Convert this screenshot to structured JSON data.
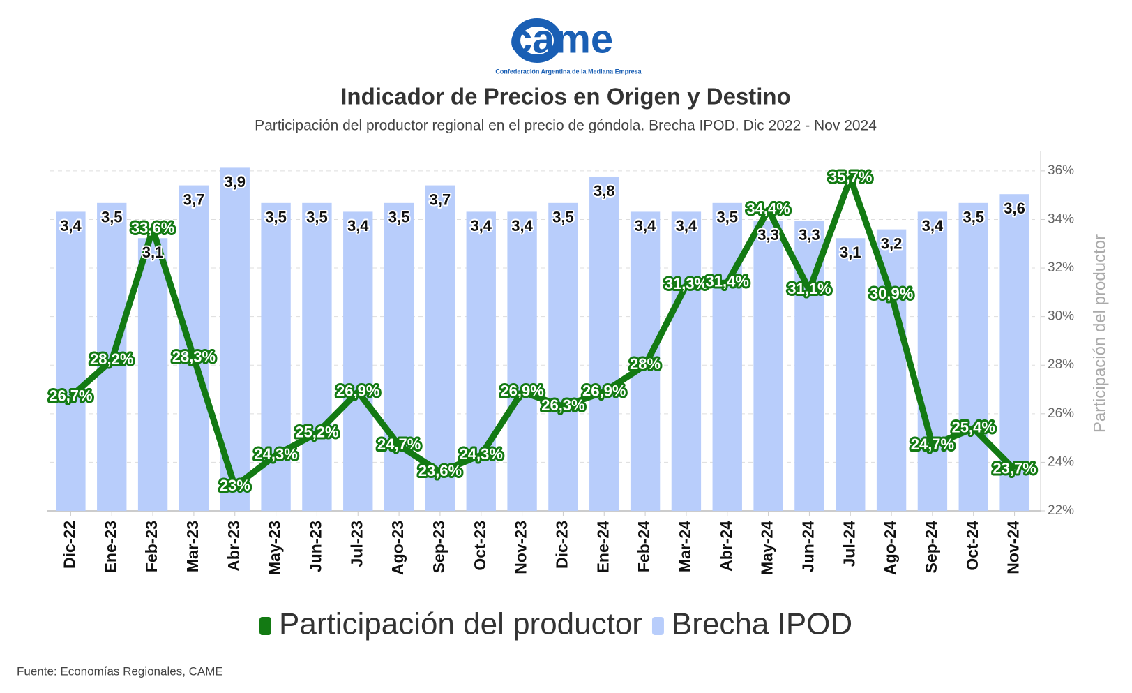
{
  "logo": {
    "text": "came",
    "caption": "Confederación Argentina de la Mediana Empresa"
  },
  "chart_data": {
    "type": "combo",
    "title": "Indicador de Precios en Origen y Destino",
    "subtitle": "Participación del productor regional en el precio de góndola. Brecha IPOD. Dic 2022 - Nov 2024",
    "categories": [
      "Dic-22",
      "Ene-23",
      "Feb-23",
      "Mar-23",
      "Abr-23",
      "May-23",
      "Jun-23",
      "Jul-23",
      "Ago-23",
      "Sep-23",
      "Oct-23",
      "Nov-23",
      "Dic-23",
      "Ene-24",
      "Feb-24",
      "Mar-24",
      "Abr-24",
      "May-24",
      "Jun-24",
      "Jul-24",
      "Ago-24",
      "Sep-24",
      "Oct-24",
      "Nov-24"
    ],
    "series": [
      {
        "name": "Participación del productor",
        "type": "line",
        "axis": "y2",
        "color": "#137a13",
        "values": [
          26.7,
          28.2,
          33.6,
          28.3,
          23,
          24.3,
          25.2,
          26.9,
          24.7,
          23.6,
          24.3,
          26.9,
          26.3,
          26.9,
          28,
          31.3,
          31.4,
          34.4,
          31.1,
          35.7,
          30.9,
          24.7,
          25.4,
          23.7
        ],
        "value_labels": [
          "26,7%",
          "28,2%",
          "33,6%",
          "28,3%",
          "23%",
          "24,3%",
          "25,2%",
          "26,9%",
          "24,7%",
          "23,6%",
          "24,3%",
          "26,9%",
          "26,3%",
          "26,9%",
          "28%",
          "31,3%",
          "31,4%",
          "34,4%",
          "31,1%",
          "35,7%",
          "30,9%",
          "24,7%",
          "25,4%",
          "23,7%"
        ]
      },
      {
        "name": "Brecha IPOD",
        "type": "bar",
        "color": "#b8cdfb",
        "values": [
          3.4,
          3.5,
          3.1,
          3.7,
          3.9,
          3.5,
          3.5,
          3.4,
          3.5,
          3.7,
          3.4,
          3.4,
          3.5,
          3.8,
          3.4,
          3.4,
          3.5,
          3.3,
          3.3,
          3.1,
          3.2,
          3.4,
          3.5,
          3.6
        ],
        "value_labels": [
          "3,4",
          "3,5",
          "3,1",
          "3,7",
          "3,9",
          "3,5",
          "3,5",
          "3,4",
          "3,5",
          "3,7",
          "3,4",
          "3,4",
          "3,5",
          "3,8",
          "3,4",
          "3,4",
          "3,5",
          "3,3",
          "3,3",
          "3,1",
          "3,2",
          "3,4",
          "3,5",
          "3,6"
        ]
      }
    ],
    "ylim": [
      0,
      4.03
    ],
    "y2lim": [
      22,
      36.6
    ],
    "y2ticks": [
      {
        "value": 22,
        "label": "22%"
      },
      {
        "value": 24,
        "label": "24%"
      },
      {
        "value": 26,
        "label": "26%"
      },
      {
        "value": 28,
        "label": "28%"
      },
      {
        "value": 30,
        "label": "30%"
      },
      {
        "value": 32,
        "label": "32%"
      },
      {
        "value": 34,
        "label": "34%"
      },
      {
        "value": 36,
        "label": "36%"
      }
    ],
    "y2label": "Participación del productor",
    "grid": true,
    "legend": "bottom",
    "source": "Fuente: Economías Regionales, CAME"
  }
}
